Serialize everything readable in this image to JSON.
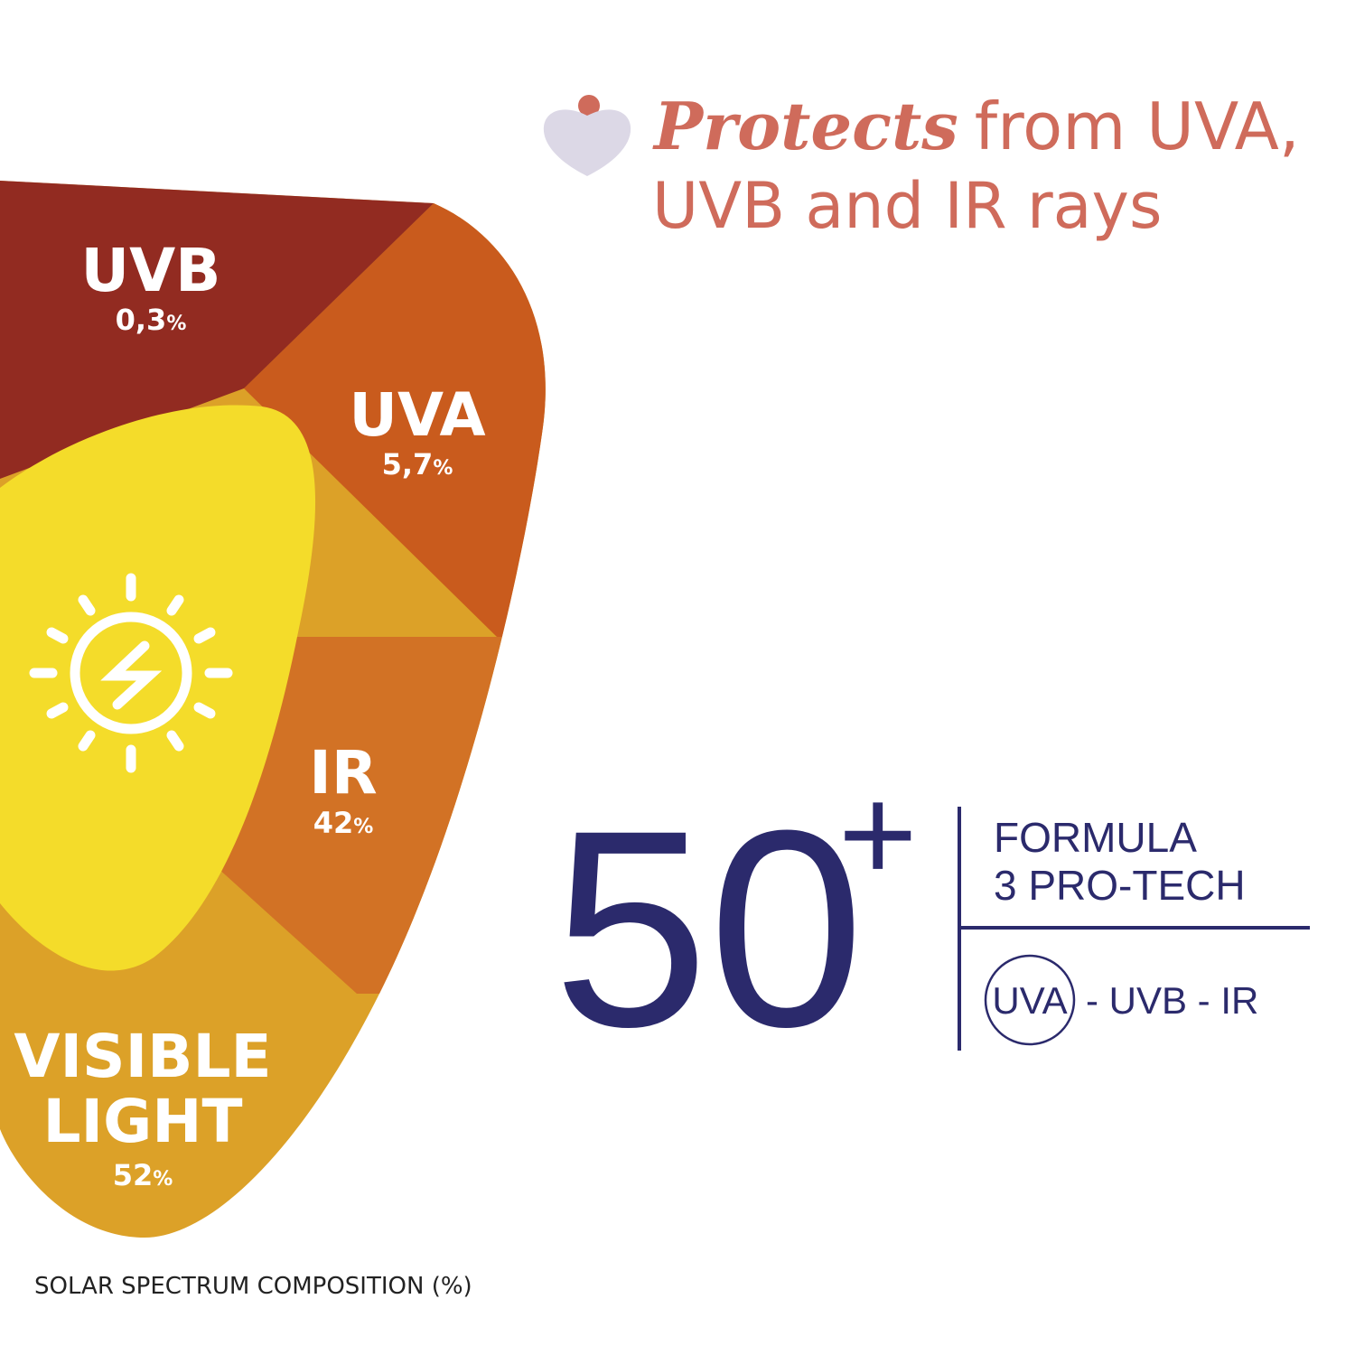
{
  "heading": {
    "emphasis": "Protects",
    "lines": [
      "from UVA,",
      "UVB and IR rays"
    ]
  },
  "segments": [
    {
      "name": [
        "UVB"
      ],
      "value": "0,3",
      "unit": "%"
    },
    {
      "name": [
        "UVA"
      ],
      "value": "5,7",
      "unit": "%"
    },
    {
      "name": [
        "IR"
      ],
      "value": "42",
      "unit": "%"
    },
    {
      "name": [
        "VISIBLE",
        "LIGHT"
      ],
      "value": "52",
      "unit": "%"
    }
  ],
  "badge": {
    "number": "50",
    "plus": "+",
    "formula": [
      "FORMULA",
      "3 PRO-TECH"
    ],
    "circled": "UVA",
    "rest": "- UVB - IR"
  },
  "footer": "SOLAR SPECTRUM COMPOSITION (%)"
}
